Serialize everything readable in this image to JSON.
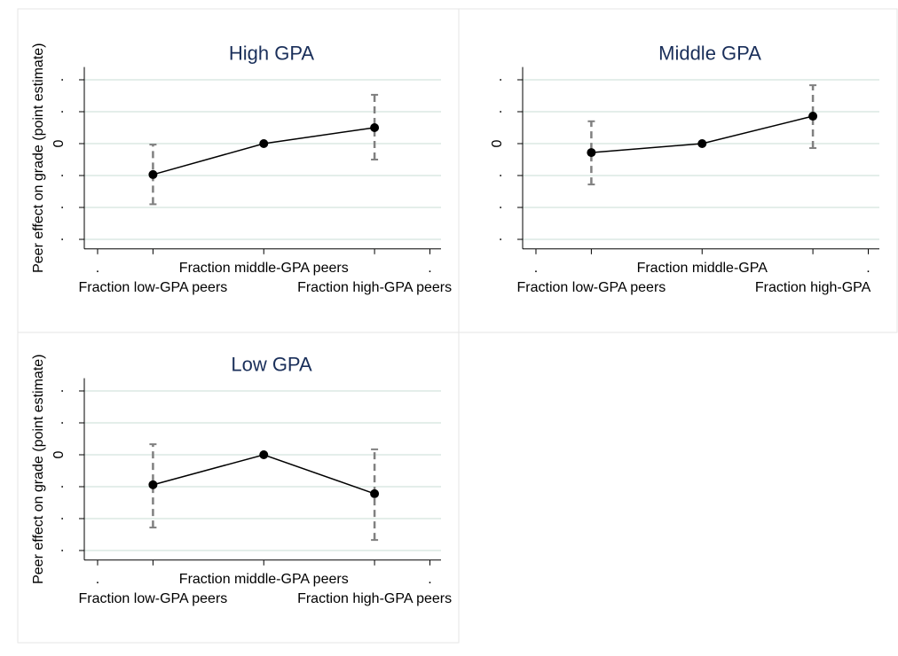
{
  "chart_data": [
    {
      "type": "line",
      "title": "High GPA",
      "ylabel": "Peer effect on grade (point estimate)",
      "x": [
        1,
        2,
        3
      ],
      "values": [
        -0.97,
        0,
        0.5
      ],
      "lower": [
        -1.9,
        0,
        -0.5
      ],
      "upper": [
        -0.03,
        0,
        1.53
      ],
      "color": "#000000",
      "error_color": "#808080",
      "xlim": [
        0.38,
        3.6
      ],
      "xticks": [
        {
          "value": 0.5,
          "label": "."
        },
        {
          "value": 1,
          "label": "Fraction low-GPA peers"
        },
        {
          "value": 2,
          "label": "Fraction middle-GPA peers"
        },
        {
          "value": 3,
          "label": "Fraction high-GPA peers"
        },
        {
          "value": 3.5,
          "label": "."
        }
      ],
      "ylim": [
        -3.3,
        2.4
      ],
      "yticks": [
        {
          "value": -3,
          "label": "."
        },
        {
          "value": -2,
          "label": "."
        },
        {
          "value": -1,
          "label": "."
        },
        0,
        {
          "value": 1,
          "label": "."
        },
        {
          "value": 2,
          "label": "."
        }
      ],
      "grid": true
    },
    {
      "type": "line",
      "title": "Middle GPA",
      "x": [
        1,
        2,
        3
      ],
      "values": [
        -0.28,
        0,
        0.86
      ],
      "lower": [
        -1.28,
        0,
        -0.14
      ],
      "upper": [
        0.7,
        0,
        1.83
      ],
      "color": "#000000",
      "error_color": "#808080",
      "xlim": [
        0.38,
        3.6
      ],
      "xticks": [
        {
          "value": 0.5,
          "label": "."
        },
        {
          "value": 1,
          "label": "Fraction low-GPA peers"
        },
        {
          "value": 2,
          "label": "Fraction middle-GPA"
        },
        {
          "value": 3,
          "label": "Fraction high-GPA"
        },
        {
          "value": 3.5,
          "label": "."
        }
      ],
      "ylim": [
        -3.3,
        2.4
      ],
      "yticks": [
        {
          "value": -3,
          "label": "."
        },
        {
          "value": -2,
          "label": "."
        },
        {
          "value": -1,
          "label": "."
        },
        0,
        {
          "value": 1,
          "label": "."
        },
        {
          "value": 2,
          "label": "."
        }
      ],
      "grid": true
    },
    {
      "type": "line",
      "title": "Low GPA",
      "ylabel": "Peer effect on grade (point estimate)",
      "x": [
        1,
        2,
        3
      ],
      "values": [
        -0.94,
        0,
        -1.22
      ],
      "lower": [
        -2.28,
        0,
        -2.67
      ],
      "upper": [
        0.33,
        0,
        0.17
      ],
      "color": "#000000",
      "error_color": "#808080",
      "xlim": [
        0.38,
        3.6
      ],
      "xticks": [
        {
          "value": 0.5,
          "label": "."
        },
        {
          "value": 1,
          "label": "Fraction low-GPA peers"
        },
        {
          "value": 2,
          "label": "Fraction middle-GPA peers"
        },
        {
          "value": 3,
          "label": "Fraction high-GPA peers"
        },
        {
          "value": 3.5,
          "label": "."
        }
      ],
      "ylim": [
        -3.3,
        2.4
      ],
      "yticks": [
        {
          "value": -3,
          "label": "."
        },
        {
          "value": -2,
          "label": "."
        },
        {
          "value": -1,
          "label": "."
        },
        0,
        {
          "value": 1,
          "label": "."
        },
        {
          "value": 2,
          "label": "."
        }
      ],
      "grid": true
    }
  ]
}
